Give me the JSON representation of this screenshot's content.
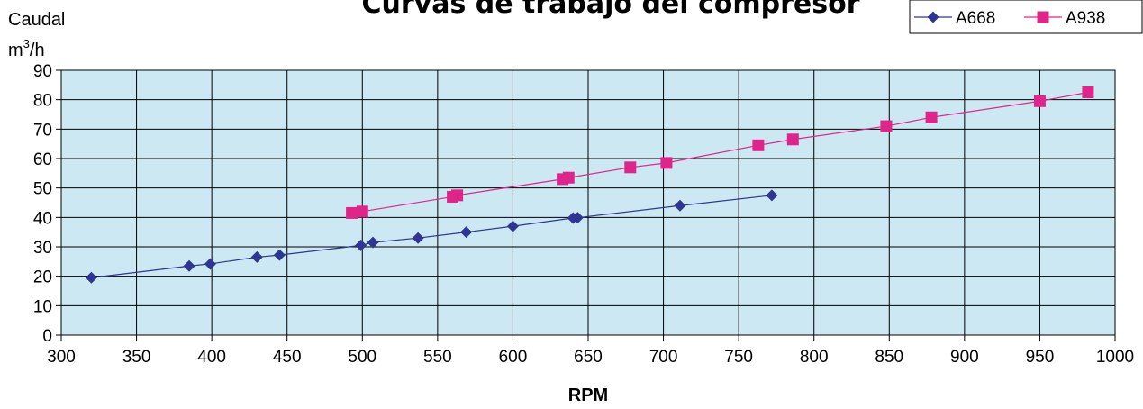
{
  "chart_data": {
    "type": "line",
    "title": "Curvas de trabajo del compresor",
    "xlabel": "RPM",
    "ylabel": "Caudal",
    "ylabel_unit_base": "m",
    "ylabel_unit_sup": "3",
    "ylabel_unit_rest": "/h",
    "xlim": [
      300,
      1000
    ],
    "ylim": [
      0,
      90
    ],
    "x_ticks": [
      300,
      350,
      400,
      450,
      500,
      550,
      600,
      650,
      700,
      750,
      800,
      850,
      900,
      950,
      1000
    ],
    "y_ticks": [
      0,
      10,
      20,
      30,
      40,
      50,
      60,
      70,
      80,
      90
    ],
    "grid": true,
    "plot_background": "#cbe8f3",
    "legend_position": "top-right",
    "series": [
      {
        "name": "A668",
        "color": "#2e3592",
        "marker": "diamond",
        "points": [
          [
            320,
            19.5
          ],
          [
            385,
            23.5
          ],
          [
            399,
            24.2
          ],
          [
            430,
            26.5
          ],
          [
            445,
            27.2
          ],
          [
            499,
            30.5
          ],
          [
            507,
            31.5
          ],
          [
            537,
            33
          ],
          [
            569,
            35
          ],
          [
            600,
            37
          ],
          [
            640,
            39.8
          ],
          [
            643,
            39.9
          ],
          [
            711,
            44
          ],
          [
            772,
            47.5
          ]
        ]
      },
      {
        "name": "A938",
        "color": "#e0258a",
        "marker": "square",
        "points": [
          [
            493,
            41.5
          ],
          [
            500,
            42
          ],
          [
            560,
            47
          ],
          [
            563,
            47.5
          ],
          [
            633,
            53
          ],
          [
            637,
            53.5
          ],
          [
            678,
            57
          ],
          [
            702,
            58.5
          ],
          [
            763,
            64.5
          ],
          [
            786,
            66.5
          ],
          [
            848,
            71
          ],
          [
            878,
            74
          ],
          [
            950,
            79.5
          ],
          [
            982,
            82.5
          ]
        ]
      }
    ]
  }
}
